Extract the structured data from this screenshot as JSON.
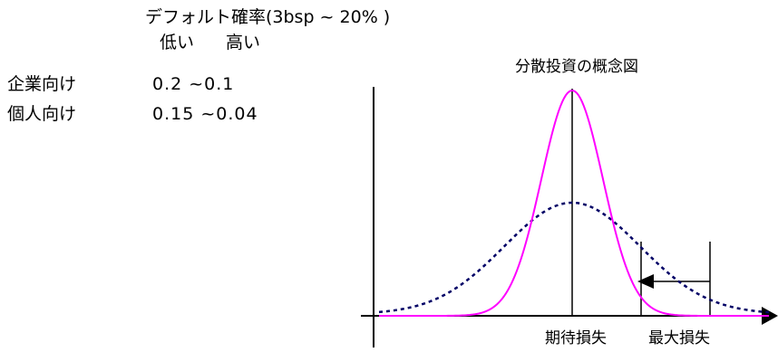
{
  "table": {
    "title": "デフォルト確率(3bsp ~ 20% )",
    "header_low": "低い",
    "header_high": "高い",
    "rows": [
      {
        "label": "企業向け",
        "values": "0.2 ~0.1"
      },
      {
        "label": "個人向け",
        "values": "0.15 ~0.04"
      }
    ]
  },
  "diagram": {
    "title": "分散投資の概念図",
    "expected_loss_label": "期待損失",
    "max_loss_label": "最大損失",
    "colors": {
      "concentrated_curve": "#ff00ff",
      "diversified_curve": "#000066",
      "axis": "#000000"
    }
  }
}
